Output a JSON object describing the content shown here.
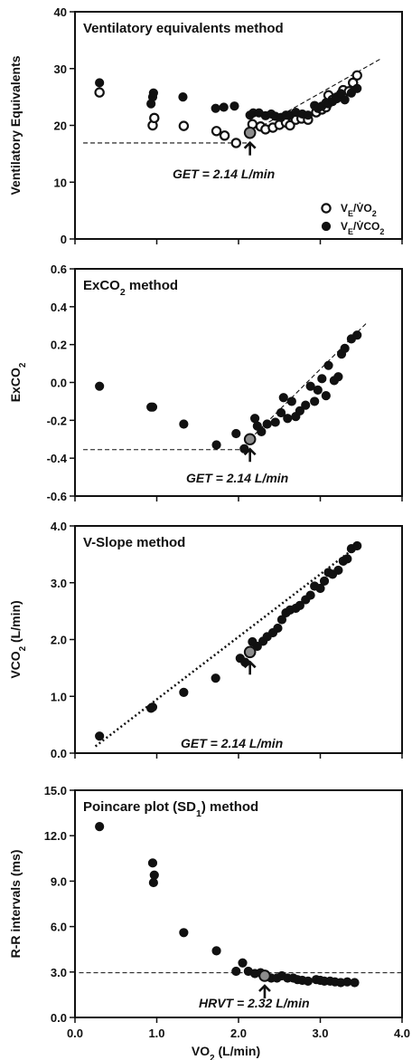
{
  "chart_data": [
    {
      "type": "scatter",
      "title": "Ventilatory equivalents method",
      "ylabel": "Ventilatory Equivalents",
      "xlim": [
        0,
        4
      ],
      "ylim": [
        0,
        40
      ],
      "y_ticks": [
        "0",
        "10",
        "20",
        "30",
        "40"
      ],
      "legend_position": "bottom-right",
      "series": [
        {
          "name": "VE/VO2",
          "marker": "open-circle",
          "points": [
            [
              0.3,
              25.8
            ],
            [
              0.95,
              20
            ],
            [
              0.97,
              21.3
            ],
            [
              1.33,
              19.9
            ],
            [
              1.73,
              19
            ],
            [
              1.83,
              18.2
            ],
            [
              1.97,
              16.9
            ],
            [
              2.14,
              18.7
            ],
            [
              2.17,
              20.2
            ],
            [
              2.27,
              19.8
            ],
            [
              2.33,
              19.3
            ],
            [
              2.42,
              19.6
            ],
            [
              2.5,
              20.1
            ],
            [
              2.58,
              20.5
            ],
            [
              2.63,
              20
            ],
            [
              2.7,
              21
            ],
            [
              2.77,
              21.2
            ],
            [
              2.85,
              21
            ],
            [
              2.95,
              22.3
            ],
            [
              3.02,
              22.8
            ],
            [
              3.07,
              23.2
            ],
            [
              3.1,
              25.3
            ],
            [
              3.15,
              24.5
            ],
            [
              3.2,
              24.8
            ],
            [
              3.28,
              26.2
            ],
            [
              3.35,
              26
            ],
            [
              3.4,
              27.5
            ],
            [
              3.45,
              28.8
            ]
          ]
        },
        {
          "name": "VE/VCO2",
          "marker": "filled-circle",
          "points": [
            [
              0.3,
              27.5
            ],
            [
              0.95,
              25
            ],
            [
              0.96,
              25.7
            ],
            [
              0.93,
              23.8
            ],
            [
              1.32,
              25
            ],
            [
              1.72,
              23
            ],
            [
              1.82,
              23.2
            ],
            [
              1.95,
              23.4
            ],
            [
              2.14,
              21.8
            ],
            [
              2.18,
              22.2
            ],
            [
              2.25,
              22.2
            ],
            [
              2.33,
              21.7
            ],
            [
              2.4,
              22
            ],
            [
              2.45,
              21.6
            ],
            [
              2.52,
              21.4
            ],
            [
              2.58,
              21.8
            ],
            [
              2.63,
              21.8
            ],
            [
              2.7,
              22.3
            ],
            [
              2.78,
              22
            ],
            [
              2.85,
              21.8
            ],
            [
              2.93,
              23.5
            ],
            [
              2.97,
              23
            ],
            [
              3.02,
              23.4
            ],
            [
              3.07,
              24
            ],
            [
              3.1,
              23.8
            ],
            [
              3.15,
              24.2
            ],
            [
              3.2,
              25
            ],
            [
              3.25,
              25.6
            ],
            [
              3.3,
              24.5
            ],
            [
              3.38,
              25.7
            ],
            [
              3.45,
              26.5
            ]
          ]
        }
      ],
      "fit_lines": [
        {
          "style": "dashed",
          "from": [
            0.1,
            16.9
          ],
          "to": [
            2.14,
            16.9
          ]
        },
        {
          "style": "dashed",
          "from": [
            2.14,
            18.7
          ],
          "to": [
            3.75,
            31.8
          ]
        }
      ],
      "highlight_point": [
        2.14,
        18.7
      ],
      "annotation": "GET = 2.14 L/min"
    },
    {
      "type": "scatter",
      "title": "ExCO2 method",
      "ylabel": "ExCO2",
      "xlim": [
        0,
        4
      ],
      "ylim": [
        -0.6,
        0.6
      ],
      "y_ticks": [
        "-0.6",
        "-0.4",
        "-0.2",
        "0.0",
        "0.2",
        "0.4",
        "0.6"
      ],
      "series": [
        {
          "name": "ExCO2",
          "marker": "filled-circle",
          "points": [
            [
              0.3,
              -0.02
            ],
            [
              0.93,
              -0.13
            ],
            [
              0.95,
              -0.13
            ],
            [
              1.33,
              -0.22
            ],
            [
              1.73,
              -0.33
            ],
            [
              1.97,
              -0.27
            ],
            [
              2.07,
              -0.35
            ],
            [
              2.14,
              -0.3
            ],
            [
              2.2,
              -0.19
            ],
            [
              2.23,
              -0.23
            ],
            [
              2.28,
              -0.26
            ],
            [
              2.35,
              -0.22
            ],
            [
              2.45,
              -0.21
            ],
            [
              2.52,
              -0.16
            ],
            [
              2.55,
              -0.08
            ],
            [
              2.6,
              -0.19
            ],
            [
              2.65,
              -0.1
            ],
            [
              2.7,
              -0.18
            ],
            [
              2.75,
              -0.15
            ],
            [
              2.82,
              -0.12
            ],
            [
              2.88,
              -0.02
            ],
            [
              2.93,
              -0.1
            ],
            [
              2.97,
              -0.04
            ],
            [
              3.02,
              0.02
            ],
            [
              3.07,
              -0.07
            ],
            [
              3.1,
              0.09
            ],
            [
              3.17,
              0.01
            ],
            [
              3.22,
              0.03
            ],
            [
              3.26,
              0.15
            ],
            [
              3.3,
              0.18
            ],
            [
              3.38,
              0.23
            ],
            [
              3.45,
              0.25
            ]
          ]
        }
      ],
      "fit_lines": [
        {
          "style": "dashed",
          "from": [
            0.1,
            -0.355
          ],
          "to": [
            2.14,
            -0.355
          ]
        },
        {
          "style": "dashed",
          "from": [
            2.14,
            -0.3
          ],
          "to": [
            3.58,
            0.32
          ]
        }
      ],
      "highlight_point": [
        2.14,
        -0.3
      ],
      "annotation": "GET = 2.14 L/min"
    },
    {
      "type": "scatter",
      "title": "V-Slope method",
      "ylabel": "VCO2 (L/min)",
      "xlim": [
        0,
        4
      ],
      "ylim": [
        0,
        4
      ],
      "y_ticks": [
        "0.0",
        "1.0",
        "2.0",
        "3.0",
        "4.0"
      ],
      "series": [
        {
          "name": "VCO2",
          "marker": "filled-circle",
          "points": [
            [
              0.3,
              0.3
            ],
            [
              0.93,
              0.79
            ],
            [
              0.95,
              0.81
            ],
            [
              1.33,
              1.07
            ],
            [
              1.72,
              1.32
            ],
            [
              2.02,
              1.67
            ],
            [
              2.08,
              1.6
            ],
            [
              2.14,
              1.78
            ],
            [
              2.17,
              1.96
            ],
            [
              2.23,
              1.88
            ],
            [
              2.3,
              1.97
            ],
            [
              2.35,
              2.05
            ],
            [
              2.42,
              2.12
            ],
            [
              2.48,
              2.2
            ],
            [
              2.53,
              2.35
            ],
            [
              2.58,
              2.47
            ],
            [
              2.63,
              2.52
            ],
            [
              2.7,
              2.55
            ],
            [
              2.75,
              2.6
            ],
            [
              2.82,
              2.7
            ],
            [
              2.88,
              2.78
            ],
            [
              2.93,
              2.94
            ],
            [
              3.0,
              2.9
            ],
            [
              3.05,
              3.03
            ],
            [
              3.1,
              3.18
            ],
            [
              3.15,
              3.15
            ],
            [
              3.22,
              3.22
            ],
            [
              3.28,
              3.38
            ],
            [
              3.33,
              3.42
            ],
            [
              3.38,
              3.6
            ],
            [
              3.45,
              3.65
            ]
          ]
        }
      ],
      "fit_lines": [
        {
          "style": "dotted",
          "from": [
            0.25,
            0.12
          ],
          "to": [
            3.5,
            3.7
          ]
        }
      ],
      "highlight_point": [
        2.14,
        1.78
      ],
      "annotation": "GET = 2.14 L/min"
    },
    {
      "type": "scatter",
      "title": "Poincare plot (SD1) method",
      "ylabel": "R-R intervals (ms)",
      "xlabel": "VO2 (L/min)",
      "xlim": [
        0,
        4
      ],
      "ylim": [
        0,
        15
      ],
      "x_ticks": [
        "0.0",
        "1.0",
        "2.0",
        "3.0",
        "4.0"
      ],
      "y_ticks": [
        "0.0",
        "3.0",
        "6.0",
        "9.0",
        "12.0",
        "15.0"
      ],
      "series": [
        {
          "name": "SD1",
          "marker": "filled-circle",
          "points": [
            [
              0.3,
              12.6
            ],
            [
              0.95,
              10.2
            ],
            [
              0.97,
              9.4
            ],
            [
              0.96,
              8.9
            ],
            [
              1.33,
              5.6
            ],
            [
              1.73,
              4.4
            ],
            [
              1.97,
              3.05
            ],
            [
              2.05,
              3.6
            ],
            [
              2.12,
              3.05
            ],
            [
              2.2,
              2.9
            ],
            [
              2.27,
              2.95
            ],
            [
              2.32,
              2.75
            ],
            [
              2.4,
              2.6
            ],
            [
              2.47,
              2.6
            ],
            [
              2.53,
              2.75
            ],
            [
              2.6,
              2.6
            ],
            [
              2.67,
              2.6
            ],
            [
              2.72,
              2.5
            ],
            [
              2.78,
              2.45
            ],
            [
              2.85,
              2.4
            ],
            [
              2.95,
              2.5
            ],
            [
              3.0,
              2.45
            ],
            [
              3.05,
              2.4
            ],
            [
              3.12,
              2.4
            ],
            [
              3.18,
              2.35
            ],
            [
              3.25,
              2.3
            ],
            [
              3.33,
              2.35
            ],
            [
              3.42,
              2.3
            ]
          ]
        }
      ],
      "fit_lines": [
        {
          "style": "dashed",
          "from": [
            0.05,
            2.95
          ],
          "to": [
            4.0,
            2.95
          ]
        }
      ],
      "highlight_point": [
        2.32,
        2.75
      ],
      "annotation": "HRVT = 2.32 L/min"
    }
  ],
  "legend": {
    "item1": {
      "main": "V",
      "sub": "E",
      "mid": "/V̇O",
      "sub2": "2"
    },
    "item2": {
      "main": "V",
      "sub": "E",
      "mid": "/V̇CO",
      "sub2": "2"
    }
  },
  "colors": {
    "ink": "#111111",
    "highlight": "#8c8c8c",
    "open_fill": "#ffffff"
  }
}
